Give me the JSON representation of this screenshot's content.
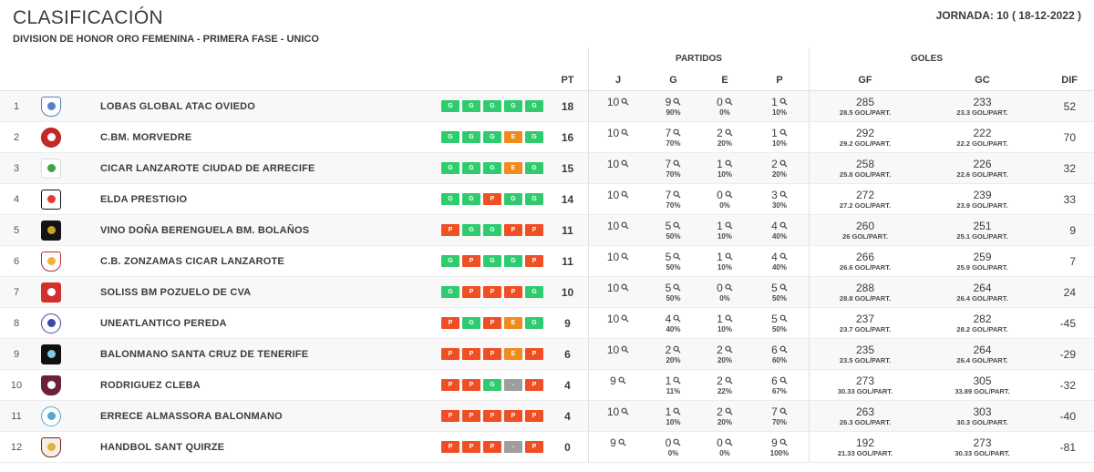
{
  "header": {
    "title": "CLASIFICACIÓN",
    "subtitle": "DIVISION DE HONOR ORO FEMENINA - PRIMERA FASE - UNICO",
    "jornada": "JORNADA: 10 ( 18-12-2022 )"
  },
  "table": {
    "group_headers": {
      "partidos": "PARTIDOS",
      "goles": "GOLES"
    },
    "columns": {
      "pt": "PT",
      "j": "J",
      "g": "G",
      "e": "E",
      "p": "P",
      "gf": "GF",
      "gc": "GC",
      "dif": "DIF"
    },
    "form_colors": {
      "G": "#2fcb6f",
      "E": "#ef8b1f",
      "P": "#f04e23",
      "-": "#9e9e9e"
    },
    "rows": [
      {
        "pos": "1",
        "team": "LOBAS GLOBAL ATAC OVIEDO",
        "logo": {
          "shape": "crest",
          "bg": "#ffffff",
          "border": "#5b7fc4",
          "accent": "#5b7fc4"
        },
        "form": [
          "G",
          "G",
          "G",
          "G",
          "G"
        ],
        "pt": "18",
        "j": "10",
        "g": "9",
        "g_pct": "90%",
        "e": "0",
        "e_pct": "0%",
        "p": "1",
        "p_pct": "10%",
        "gf": "285",
        "gf_avg": "28.5 GOL/PART.",
        "gc": "233",
        "gc_avg": "23.3 GOL/PART.",
        "dif": "52"
      },
      {
        "pos": "2",
        "team": "C.BM. MORVEDRE",
        "logo": {
          "shape": "circle",
          "bg": "#c62828",
          "border": "#a81f1f",
          "accent": "#ffffff"
        },
        "form": [
          "G",
          "G",
          "G",
          "E",
          "G"
        ],
        "pt": "16",
        "j": "10",
        "g": "7",
        "g_pct": "70%",
        "e": "2",
        "e_pct": "20%",
        "p": "1",
        "p_pct": "10%",
        "gf": "292",
        "gf_avg": "29.2 GOL/PART.",
        "gc": "222",
        "gc_avg": "22.2 GOL/PART.",
        "dif": "70"
      },
      {
        "pos": "3",
        "team": "CICAR LANZAROTE CIUDAD DE ARRECIFE",
        "logo": {
          "shape": "square",
          "bg": "#ffffff",
          "border": "#dddddd",
          "accent": "#43a047"
        },
        "form": [
          "G",
          "G",
          "G",
          "E",
          "G"
        ],
        "pt": "15",
        "j": "10",
        "g": "7",
        "g_pct": "70%",
        "e": "1",
        "e_pct": "10%",
        "p": "2",
        "p_pct": "20%",
        "gf": "258",
        "gf_avg": "25.8 GOL/PART.",
        "gc": "226",
        "gc_avg": "22.6 GOL/PART.",
        "dif": "32"
      },
      {
        "pos": "4",
        "team": "ELDA PRESTIGIO",
        "logo": {
          "shape": "square",
          "bg": "#ffffff",
          "border": "#111111",
          "accent": "#e53935"
        },
        "form": [
          "G",
          "G",
          "P",
          "G",
          "G"
        ],
        "pt": "14",
        "j": "10",
        "g": "7",
        "g_pct": "70%",
        "e": "0",
        "e_pct": "0%",
        "p": "3",
        "p_pct": "30%",
        "gf": "272",
        "gf_avg": "27.2 GOL/PART.",
        "gc": "239",
        "gc_avg": "23.9 GOL/PART.",
        "dif": "33"
      },
      {
        "pos": "5",
        "team": "VINO DOÑA BERENGUELA BM. BOLAÑOS",
        "logo": {
          "shape": "square",
          "bg": "#141414",
          "border": "#141414",
          "accent": "#c9a227"
        },
        "form": [
          "P",
          "G",
          "G",
          "P",
          "P"
        ],
        "pt": "11",
        "j": "10",
        "g": "5",
        "g_pct": "50%",
        "e": "1",
        "e_pct": "10%",
        "p": "4",
        "p_pct": "40%",
        "gf": "260",
        "gf_avg": "26 GOL/PART.",
        "gc": "251",
        "gc_avg": "25.1 GOL/PART.",
        "dif": "9"
      },
      {
        "pos": "6",
        "team": "C.B. ZONZAMAS CICAR LANZAROTE",
        "logo": {
          "shape": "shield",
          "bg": "#ffffff",
          "border": "#c62828",
          "accent": "#f2b233"
        },
        "form": [
          "G",
          "P",
          "G",
          "G",
          "P"
        ],
        "pt": "11",
        "j": "10",
        "g": "5",
        "g_pct": "50%",
        "e": "1",
        "e_pct": "10%",
        "p": "4",
        "p_pct": "40%",
        "gf": "266",
        "gf_avg": "26.6 GOL/PART.",
        "gc": "259",
        "gc_avg": "25.9 GOL/PART.",
        "dif": "7"
      },
      {
        "pos": "7",
        "team": "SOLISS BM POZUELO DE CVA",
        "logo": {
          "shape": "square",
          "bg": "#d32f2f",
          "border": "#d32f2f",
          "accent": "#ffffff"
        },
        "form": [
          "G",
          "P",
          "P",
          "P",
          "G"
        ],
        "pt": "10",
        "j": "10",
        "g": "5",
        "g_pct": "50%",
        "e": "0",
        "e_pct": "0%",
        "p": "5",
        "p_pct": "50%",
        "gf": "288",
        "gf_avg": "28.8 GOL/PART.",
        "gc": "264",
        "gc_avg": "26.4 GOL/PART.",
        "dif": "24"
      },
      {
        "pos": "8",
        "team": "UNEATLANTICO PEREDA",
        "logo": {
          "shape": "circle",
          "bg": "#ffffff",
          "border": "#3949ab",
          "accent": "#3949ab"
        },
        "form": [
          "P",
          "G",
          "P",
          "E",
          "G"
        ],
        "pt": "9",
        "j": "10",
        "g": "4",
        "g_pct": "40%",
        "e": "1",
        "e_pct": "10%",
        "p": "5",
        "p_pct": "50%",
        "gf": "237",
        "gf_avg": "23.7 GOL/PART.",
        "gc": "282",
        "gc_avg": "28.2 GOL/PART.",
        "dif": "-45"
      },
      {
        "pos": "9",
        "team": "BALONMANO SANTA CRUZ DE TENERIFE",
        "logo": {
          "shape": "square",
          "bg": "#101010",
          "border": "#101010",
          "accent": "#81c7e8"
        },
        "form": [
          "P",
          "P",
          "P",
          "E",
          "P"
        ],
        "pt": "6",
        "j": "10",
        "g": "2",
        "g_pct": "20%",
        "e": "2",
        "e_pct": "20%",
        "p": "6",
        "p_pct": "60%",
        "gf": "235",
        "gf_avg": "23.5 GOL/PART.",
        "gc": "264",
        "gc_avg": "26.4 GOL/PART.",
        "dif": "-29"
      },
      {
        "pos": "10",
        "team": "RODRIGUEZ CLEBA",
        "logo": {
          "shape": "shield",
          "bg": "#6d1f3e",
          "border": "#6d1f3e",
          "accent": "#ffffff"
        },
        "form": [
          "P",
          "P",
          "G",
          "-",
          "P"
        ],
        "pt": "4",
        "j": "9",
        "g": "1",
        "g_pct": "11%",
        "e": "2",
        "e_pct": "22%",
        "p": "6",
        "p_pct": "67%",
        "gf": "273",
        "gf_avg": "30.33 GOL/PART.",
        "gc": "305",
        "gc_avg": "33.89 GOL/PART.",
        "dif": "-32"
      },
      {
        "pos": "11",
        "team": "ERRECE ALMASSORA BALONMANO",
        "logo": {
          "shape": "circle",
          "bg": "#ffffff",
          "border": "#56a7cf",
          "accent": "#56a7cf"
        },
        "form": [
          "P",
          "P",
          "P",
          "P",
          "P"
        ],
        "pt": "4",
        "j": "10",
        "g": "1",
        "g_pct": "10%",
        "e": "2",
        "e_pct": "20%",
        "p": "7",
        "p_pct": "70%",
        "gf": "263",
        "gf_avg": "26.3 GOL/PART.",
        "gc": "303",
        "gc_avg": "30.3 GOL/PART.",
        "dif": "-40"
      },
      {
        "pos": "12",
        "team": "HANDBOL SANT QUIRZE",
        "logo": {
          "shape": "shield",
          "bg": "#f4efe2",
          "border": "#7a1f2b",
          "accent": "#e0b13e"
        },
        "form": [
          "P",
          "P",
          "P",
          "-",
          "P"
        ],
        "pt": "0",
        "j": "9",
        "g": "0",
        "g_pct": "0%",
        "e": "0",
        "e_pct": "0%",
        "p": "9",
        "p_pct": "100%",
        "gf": "192",
        "gf_avg": "21.33 GOL/PART.",
        "gc": "273",
        "gc_avg": "30.33 GOL/PART.",
        "dif": "-81"
      }
    ]
  }
}
